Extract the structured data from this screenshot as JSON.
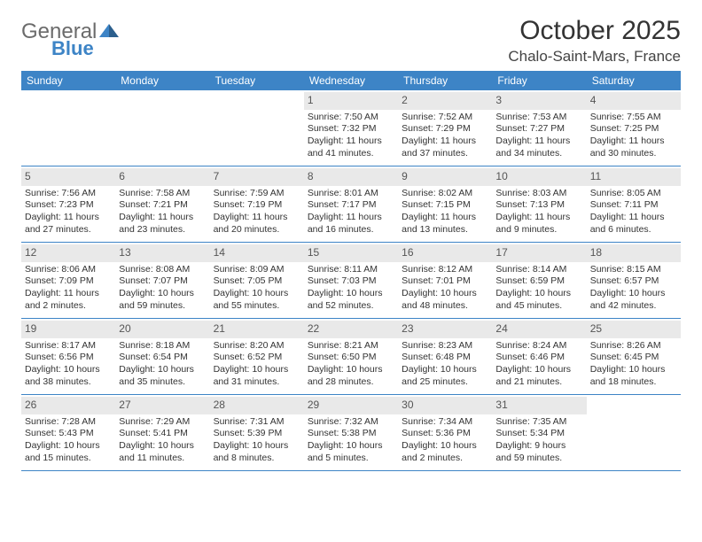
{
  "logo": {
    "word1": "General",
    "word2": "Blue"
  },
  "title": "October 2025",
  "location": "Chalo-Saint-Mars, France",
  "colors": {
    "header_bg": "#3d84c6",
    "header_text": "#ffffff",
    "daynum_bg": "#e9e9e9",
    "week_border": "#3d84c6",
    "logo_gray": "#6b6b6b",
    "logo_blue": "#3d84c6"
  },
  "weekdays": [
    "Sunday",
    "Monday",
    "Tuesday",
    "Wednesday",
    "Thursday",
    "Friday",
    "Saturday"
  ],
  "weeks": [
    [
      {
        "n": "",
        "sr": "",
        "ss": "",
        "dl": ""
      },
      {
        "n": "",
        "sr": "",
        "ss": "",
        "dl": ""
      },
      {
        "n": "",
        "sr": "",
        "ss": "",
        "dl": ""
      },
      {
        "n": "1",
        "sr": "Sunrise: 7:50 AM",
        "ss": "Sunset: 7:32 PM",
        "dl": "Daylight: 11 hours and 41 minutes."
      },
      {
        "n": "2",
        "sr": "Sunrise: 7:52 AM",
        "ss": "Sunset: 7:29 PM",
        "dl": "Daylight: 11 hours and 37 minutes."
      },
      {
        "n": "3",
        "sr": "Sunrise: 7:53 AM",
        "ss": "Sunset: 7:27 PM",
        "dl": "Daylight: 11 hours and 34 minutes."
      },
      {
        "n": "4",
        "sr": "Sunrise: 7:55 AM",
        "ss": "Sunset: 7:25 PM",
        "dl": "Daylight: 11 hours and 30 minutes."
      }
    ],
    [
      {
        "n": "5",
        "sr": "Sunrise: 7:56 AM",
        "ss": "Sunset: 7:23 PM",
        "dl": "Daylight: 11 hours and 27 minutes."
      },
      {
        "n": "6",
        "sr": "Sunrise: 7:58 AM",
        "ss": "Sunset: 7:21 PM",
        "dl": "Daylight: 11 hours and 23 minutes."
      },
      {
        "n": "7",
        "sr": "Sunrise: 7:59 AM",
        "ss": "Sunset: 7:19 PM",
        "dl": "Daylight: 11 hours and 20 minutes."
      },
      {
        "n": "8",
        "sr": "Sunrise: 8:01 AM",
        "ss": "Sunset: 7:17 PM",
        "dl": "Daylight: 11 hours and 16 minutes."
      },
      {
        "n": "9",
        "sr": "Sunrise: 8:02 AM",
        "ss": "Sunset: 7:15 PM",
        "dl": "Daylight: 11 hours and 13 minutes."
      },
      {
        "n": "10",
        "sr": "Sunrise: 8:03 AM",
        "ss": "Sunset: 7:13 PM",
        "dl": "Daylight: 11 hours and 9 minutes."
      },
      {
        "n": "11",
        "sr": "Sunrise: 8:05 AM",
        "ss": "Sunset: 7:11 PM",
        "dl": "Daylight: 11 hours and 6 minutes."
      }
    ],
    [
      {
        "n": "12",
        "sr": "Sunrise: 8:06 AM",
        "ss": "Sunset: 7:09 PM",
        "dl": "Daylight: 11 hours and 2 minutes."
      },
      {
        "n": "13",
        "sr": "Sunrise: 8:08 AM",
        "ss": "Sunset: 7:07 PM",
        "dl": "Daylight: 10 hours and 59 minutes."
      },
      {
        "n": "14",
        "sr": "Sunrise: 8:09 AM",
        "ss": "Sunset: 7:05 PM",
        "dl": "Daylight: 10 hours and 55 minutes."
      },
      {
        "n": "15",
        "sr": "Sunrise: 8:11 AM",
        "ss": "Sunset: 7:03 PM",
        "dl": "Daylight: 10 hours and 52 minutes."
      },
      {
        "n": "16",
        "sr": "Sunrise: 8:12 AM",
        "ss": "Sunset: 7:01 PM",
        "dl": "Daylight: 10 hours and 48 minutes."
      },
      {
        "n": "17",
        "sr": "Sunrise: 8:14 AM",
        "ss": "Sunset: 6:59 PM",
        "dl": "Daylight: 10 hours and 45 minutes."
      },
      {
        "n": "18",
        "sr": "Sunrise: 8:15 AM",
        "ss": "Sunset: 6:57 PM",
        "dl": "Daylight: 10 hours and 42 minutes."
      }
    ],
    [
      {
        "n": "19",
        "sr": "Sunrise: 8:17 AM",
        "ss": "Sunset: 6:56 PM",
        "dl": "Daylight: 10 hours and 38 minutes."
      },
      {
        "n": "20",
        "sr": "Sunrise: 8:18 AM",
        "ss": "Sunset: 6:54 PM",
        "dl": "Daylight: 10 hours and 35 minutes."
      },
      {
        "n": "21",
        "sr": "Sunrise: 8:20 AM",
        "ss": "Sunset: 6:52 PM",
        "dl": "Daylight: 10 hours and 31 minutes."
      },
      {
        "n": "22",
        "sr": "Sunrise: 8:21 AM",
        "ss": "Sunset: 6:50 PM",
        "dl": "Daylight: 10 hours and 28 minutes."
      },
      {
        "n": "23",
        "sr": "Sunrise: 8:23 AM",
        "ss": "Sunset: 6:48 PM",
        "dl": "Daylight: 10 hours and 25 minutes."
      },
      {
        "n": "24",
        "sr": "Sunrise: 8:24 AM",
        "ss": "Sunset: 6:46 PM",
        "dl": "Daylight: 10 hours and 21 minutes."
      },
      {
        "n": "25",
        "sr": "Sunrise: 8:26 AM",
        "ss": "Sunset: 6:45 PM",
        "dl": "Daylight: 10 hours and 18 minutes."
      }
    ],
    [
      {
        "n": "26",
        "sr": "Sunrise: 7:28 AM",
        "ss": "Sunset: 5:43 PM",
        "dl": "Daylight: 10 hours and 15 minutes."
      },
      {
        "n": "27",
        "sr": "Sunrise: 7:29 AM",
        "ss": "Sunset: 5:41 PM",
        "dl": "Daylight: 10 hours and 11 minutes."
      },
      {
        "n": "28",
        "sr": "Sunrise: 7:31 AM",
        "ss": "Sunset: 5:39 PM",
        "dl": "Daylight: 10 hours and 8 minutes."
      },
      {
        "n": "29",
        "sr": "Sunrise: 7:32 AM",
        "ss": "Sunset: 5:38 PM",
        "dl": "Daylight: 10 hours and 5 minutes."
      },
      {
        "n": "30",
        "sr": "Sunrise: 7:34 AM",
        "ss": "Sunset: 5:36 PM",
        "dl": "Daylight: 10 hours and 2 minutes."
      },
      {
        "n": "31",
        "sr": "Sunrise: 7:35 AM",
        "ss": "Sunset: 5:34 PM",
        "dl": "Daylight: 9 hours and 59 minutes."
      },
      {
        "n": "",
        "sr": "",
        "ss": "",
        "dl": ""
      }
    ]
  ]
}
